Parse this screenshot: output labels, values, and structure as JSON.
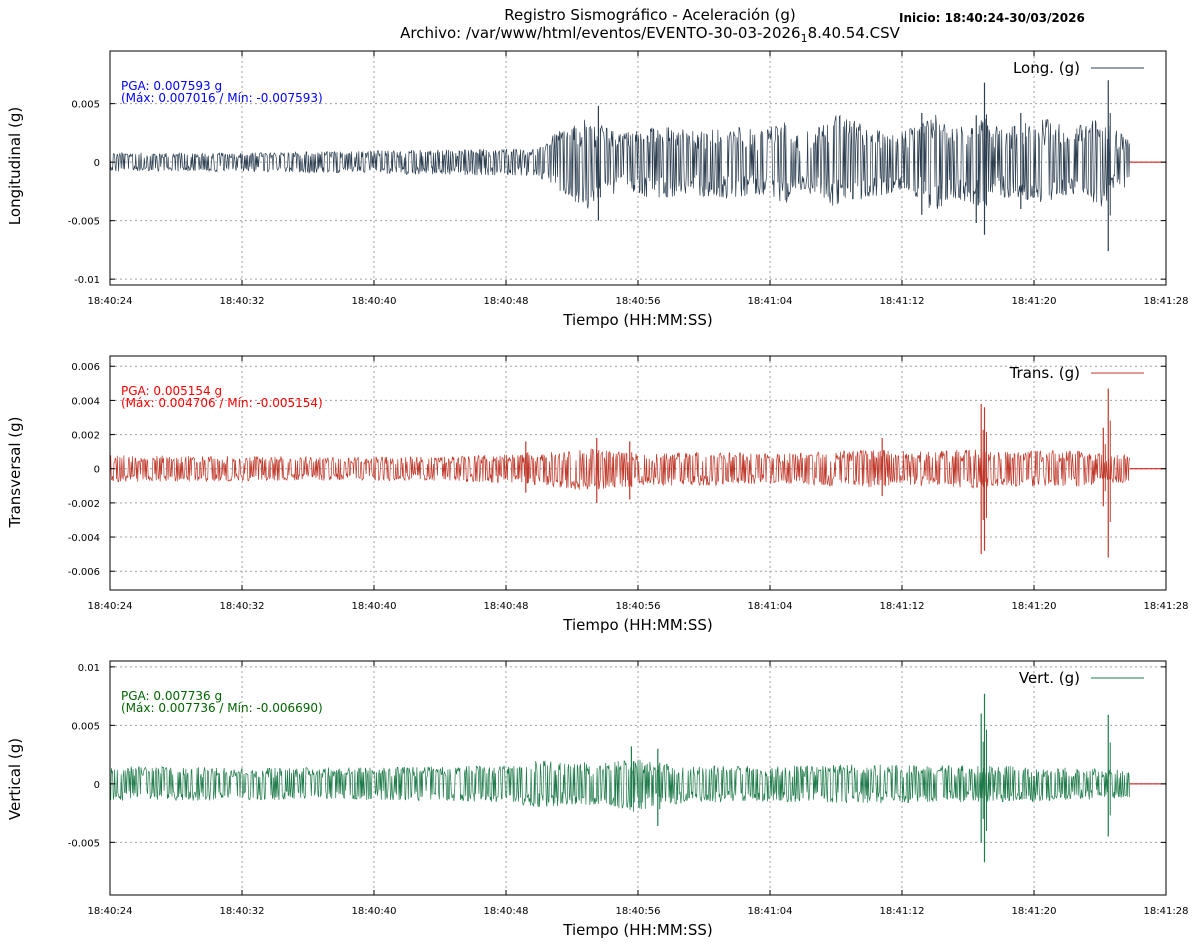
{
  "header": {
    "title": "Registro Sismográfico - Aceleración (g)",
    "archivo_prefix": "Archivo: /var/www/html/eventos/EVENTO-30-03-2026",
    "archivo_sub": "1",
    "archivo_suffix": "8.40.54.CSV",
    "inicio": "Inicio: 18:40:24-30/03/2026"
  },
  "chart_data": [
    {
      "type": "line",
      "ylabel": "Longitudinal (g)",
      "xlabel": "Tiempo (HH:MM:SS)",
      "legend": "Long. (g)",
      "legend_position": "top-right",
      "grid": true,
      "color": "#2c3e50",
      "pga_text": "PGA: 0.007593 g",
      "maxmin_text": "(Máx: 0.007016 / Mín: -0.007593)",
      "pga": 0.007593,
      "max": 0.007016,
      "min": -0.007593,
      "ylim": [
        -0.0105,
        0.0095
      ],
      "yticks": [
        0.005,
        0,
        -0.005,
        -0.01
      ],
      "ytick_labels": [
        "0.005",
        "0",
        "-0.005",
        "-0.01"
      ],
      "xticks": [
        "18:40:24",
        "18:40:32",
        "18:40:40",
        "18:40:48",
        "18:40:56",
        "18:41:04",
        "18:41:12",
        "18:41:20",
        "18:41:28"
      ],
      "xlim_seconds": [
        0,
        64
      ],
      "data_end_seconds": 61.8,
      "envelope": {
        "x": [
          0,
          8,
          16,
          26,
          27,
          29,
          30,
          31,
          33,
          35,
          36,
          38,
          39,
          41,
          42,
          43,
          44,
          46,
          47,
          49,
          50,
          51,
          53,
          54,
          55,
          57,
          58,
          60,
          61,
          61.8
        ],
        "upper": [
          0.0008,
          0.0008,
          0.001,
          0.0012,
          0.0025,
          0.0038,
          0.003,
          0.0025,
          0.0032,
          0.0028,
          0.003,
          0.003,
          0.0028,
          0.0035,
          0.0025,
          0.0032,
          0.0042,
          0.003,
          0.0025,
          0.003,
          0.0042,
          0.003,
          0.0038,
          0.0028,
          0.0032,
          0.0038,
          0.0028,
          0.0038,
          0.0028,
          0.002
        ],
        "lower": [
          -0.0008,
          -0.0008,
          -0.001,
          -0.0012,
          -0.0025,
          -0.004,
          -0.003,
          -0.0025,
          -0.0032,
          -0.0028,
          -0.003,
          -0.0032,
          -0.0028,
          -0.0035,
          -0.0025,
          -0.003,
          -0.004,
          -0.003,
          -0.0028,
          -0.003,
          -0.0045,
          -0.003,
          -0.004,
          -0.003,
          -0.0032,
          -0.004,
          -0.0028,
          -0.004,
          -0.0028,
          -0.002
        ]
      },
      "spikes": [
        {
          "x": 29.6,
          "upper": 0.0048,
          "lower": -0.005
        },
        {
          "x": 49.2,
          "upper": 0.0042,
          "lower": -0.0045
        },
        {
          "x": 52.5,
          "upper": 0.004,
          "lower": -0.0052
        },
        {
          "x": 53.0,
          "upper": 0.0068,
          "lower": -0.0062
        },
        {
          "x": 55.2,
          "upper": 0.0042,
          "lower": -0.004
        },
        {
          "x": 60.5,
          "upper": 0.007,
          "lower": -0.0076
        }
      ]
    },
    {
      "type": "line",
      "ylabel": "Transversal (g)",
      "xlabel": "Tiempo (HH:MM:SS)",
      "legend": "Trans. (g)",
      "legend_position": "top-right",
      "grid": true,
      "color": "#c0392b",
      "pga_text": "PGA: 0.005154 g",
      "maxmin_text": "(Máx: 0.004706 / Mín: -0.005154)",
      "pga": 0.005154,
      "max": 0.004706,
      "min": -0.005154,
      "ylim": [
        -0.0071,
        0.0066
      ],
      "yticks": [
        0.006,
        0.004,
        0.002,
        0,
        -0.002,
        -0.004,
        -0.006
      ],
      "ytick_labels": [
        "0.006",
        "0.004",
        "0.002",
        "0",
        "-0.002",
        "-0.004",
        "-0.006"
      ],
      "xticks": [
        "18:40:24",
        "18:40:32",
        "18:40:40",
        "18:40:48",
        "18:40:56",
        "18:41:04",
        "18:41:12",
        "18:41:20",
        "18:41:28"
      ],
      "xlim_seconds": [
        0,
        64
      ],
      "data_end_seconds": 61.8,
      "envelope": {
        "x": [
          0,
          10,
          20,
          25,
          29,
          32,
          36,
          40,
          46,
          50,
          52,
          54,
          58,
          61.8
        ],
        "upper": [
          0.0008,
          0.0007,
          0.0007,
          0.0009,
          0.0012,
          0.0009,
          0.001,
          0.0009,
          0.0011,
          0.001,
          0.0012,
          0.001,
          0.0011,
          0.0008
        ],
        "lower": [
          -0.0008,
          -0.0007,
          -0.0007,
          -0.0009,
          -0.0013,
          -0.001,
          -0.001,
          -0.0009,
          -0.0011,
          -0.001,
          -0.0012,
          -0.001,
          -0.0011,
          -0.0008
        ]
      },
      "spikes": [
        {
          "x": 25.2,
          "upper": 0.0016,
          "lower": -0.0014
        },
        {
          "x": 29.5,
          "upper": 0.0018,
          "lower": -0.002
        },
        {
          "x": 31.5,
          "upper": 0.0016,
          "lower": -0.0018
        },
        {
          "x": 46.8,
          "upper": 0.0018,
          "lower": -0.0016
        },
        {
          "x": 52.8,
          "upper": 0.0038,
          "lower": -0.005
        },
        {
          "x": 53.0,
          "upper": 0.0036,
          "lower": -0.0048
        },
        {
          "x": 60.2,
          "upper": 0.0024,
          "lower": -0.0022
        },
        {
          "x": 60.5,
          "upper": 0.0047,
          "lower": -0.0052
        }
      ]
    },
    {
      "type": "line",
      "ylabel": "Vertical (g)",
      "xlabel": "Tiempo (HH:MM:SS)",
      "legend": "Vert. (g)",
      "legend_position": "top-right",
      "grid": true,
      "color": "#1e7b4a",
      "pga_text": "PGA: 0.007736 g",
      "maxmin_text": "(Máx: 0.007736 / Mín: -0.006690)",
      "pga": 0.007736,
      "max": 0.007736,
      "min": -0.00669,
      "ylim": [
        -0.0095,
        0.0105
      ],
      "yticks": [
        0.01,
        0.005,
        0,
        -0.005
      ],
      "ytick_labels": [
        "0.01",
        "0.005",
        "0",
        "-0.005"
      ],
      "xticks": [
        "18:40:24",
        "18:40:32",
        "18:40:40",
        "18:40:48",
        "18:40:56",
        "18:41:04",
        "18:41:12",
        "18:41:20",
        "18:41:28"
      ],
      "xlim_seconds": [
        0,
        64
      ],
      "data_end_seconds": 61.8,
      "envelope": {
        "x": [
          0,
          8,
          16,
          24,
          26,
          30,
          32,
          33,
          36,
          40,
          46,
          48,
          52,
          56,
          61.8
        ],
        "upper": [
          0.0015,
          0.0014,
          0.0014,
          0.0016,
          0.002,
          0.0018,
          0.0022,
          0.0018,
          0.0016,
          0.0015,
          0.0017,
          0.0016,
          0.0016,
          0.0015,
          0.0012
        ],
        "lower": [
          -0.0015,
          -0.0014,
          -0.0014,
          -0.0016,
          -0.002,
          -0.0018,
          -0.0025,
          -0.0018,
          -0.0016,
          -0.0015,
          -0.0017,
          -0.0016,
          -0.0016,
          -0.0015,
          -0.0012
        ]
      },
      "spikes": [
        {
          "x": 31.6,
          "upper": 0.0032,
          "lower": -0.002
        },
        {
          "x": 33.2,
          "upper": 0.003,
          "lower": -0.0036
        },
        {
          "x": 53.0,
          "upper": 0.0077,
          "lower": -0.0067
        },
        {
          "x": 52.8,
          "upper": 0.006,
          "lower": -0.005
        },
        {
          "x": 60.5,
          "upper": 0.0059,
          "lower": -0.0045
        }
      ]
    }
  ]
}
